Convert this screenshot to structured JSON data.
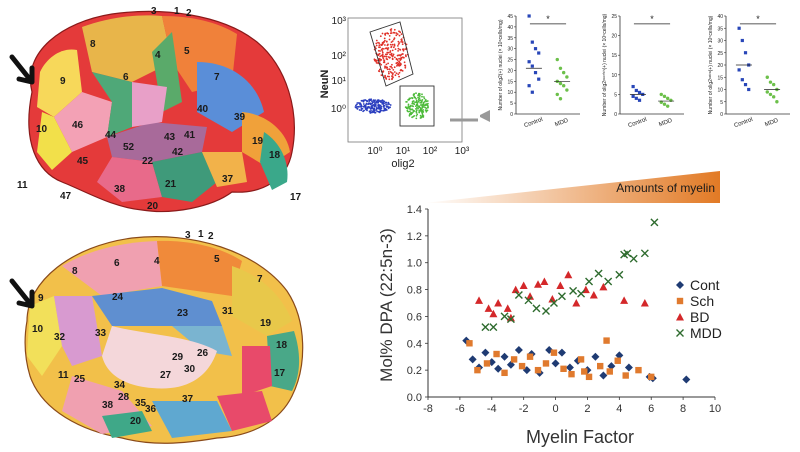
{
  "brain_lateral": {
    "area_labels": [
      "3",
      "1",
      "2",
      "4",
      "5",
      "6",
      "7",
      "8",
      "9",
      "10",
      "46",
      "44",
      "43",
      "40",
      "39",
      "41",
      "42",
      "45",
      "22",
      "52",
      "19",
      "18",
      "17",
      "21",
      "37",
      "38",
      "20",
      "11",
      "47"
    ]
  },
  "brain_medial": {
    "area_labels": [
      "3",
      "1",
      "2",
      "4",
      "5",
      "6",
      "7",
      "8",
      "9",
      "10",
      "32",
      "24",
      "23",
      "31",
      "33",
      "19",
      "18",
      "17",
      "26",
      "29",
      "30",
      "27",
      "25",
      "11",
      "34",
      "28",
      "35",
      "36",
      "37",
      "38",
      "20"
    ]
  },
  "flow_cytometry": {
    "ylabel": "NeuN",
    "xlabel": "olig2",
    "y_ticks": [
      "10³",
      "10²",
      "10¹",
      "10⁰"
    ],
    "x_ticks": [
      "10⁰",
      "10¹",
      "10²",
      "10³"
    ]
  },
  "dot_plots": [
    {
      "ylabel": "Number of olig2(+) nuclei (× 10⁶cells/mg)",
      "categories": [
        "Control",
        "MDD"
      ],
      "y_ticks": [
        "0",
        "5",
        "10",
        "15",
        "20",
        "25",
        "30",
        "35",
        "40",
        "45"
      ],
      "significance": "*",
      "points": {
        "Control": [
          45,
          33,
          30,
          28,
          24,
          22,
          19,
          16,
          13,
          10
        ],
        "MDD": [
          25,
          21,
          19,
          17,
          15,
          14,
          13,
          11,
          9,
          7
        ]
      },
      "means": [
        21,
        15
      ]
    },
    {
      "ylabel": "Number of olig2ᵖᵉᵒʳⁱᶜʰ(+) nuclei (× 10⁵cells/mg)",
      "categories": [
        "Control",
        "MDD"
      ],
      "y_ticks": [
        "0",
        "5",
        "10",
        "15",
        "20",
        "25"
      ],
      "significance": "*",
      "points": {
        "Control": [
          7,
          6,
          5.5,
          5,
          4.5,
          4,
          3.5
        ],
        "MDD": [
          5,
          4.5,
          4,
          3.5,
          3,
          2.5,
          2
        ]
      },
      "means": [
        5,
        3.3
      ]
    },
    {
      "ylabel": "Number of olig2ᵉˣᵗʳᵃ(+) nuclei (× 10⁵cells/mg)",
      "categories": [
        "Control",
        "MDD"
      ],
      "y_ticks": [
        "0",
        "5",
        "10",
        "15",
        "20",
        "25",
        "30",
        "35",
        "40"
      ],
      "significance": "*",
      "points": {
        "Control": [
          35,
          30,
          25,
          20,
          18,
          14,
          12,
          10
        ],
        "MDD": [
          15,
          13,
          12,
          10,
          9,
          8,
          7,
          5
        ]
      },
      "means": [
        20,
        10
      ]
    }
  ],
  "chart_data": {
    "type": "scatter",
    "xlabel": "Myelin Factor",
    "ylabel": "Mol% DPA (22:5n-3)",
    "xlim": [
      -8,
      10
    ],
    "ylim": [
      0,
      1.4
    ],
    "x_ticks": [
      "-8",
      "-6",
      "-4",
      "-2",
      "0",
      "2",
      "4",
      "6",
      "8",
      "10"
    ],
    "y_ticks": [
      "0.0",
      "0.2",
      "0.4",
      "0.6",
      "0.8",
      "1.0",
      "1.2",
      "1.4"
    ],
    "banner": "Amounts of myelin",
    "legend_position": "right",
    "series": [
      {
        "name": "Cont",
        "color": "#1f3b73",
        "marker": "diamond",
        "points": [
          [
            -5.6,
            0.42
          ],
          [
            -5.2,
            0.28
          ],
          [
            -4.8,
            0.22
          ],
          [
            -4.4,
            0.33
          ],
          [
            -4.0,
            0.26
          ],
          [
            -3.6,
            0.21
          ],
          [
            -3.2,
            0.3
          ],
          [
            -2.8,
            0.24
          ],
          [
            -2.3,
            0.35
          ],
          [
            -1.8,
            0.2
          ],
          [
            -1.5,
            0.32
          ],
          [
            -1.0,
            0.18
          ],
          [
            -0.4,
            0.35
          ],
          [
            0.0,
            0.25
          ],
          [
            0.4,
            0.33
          ],
          [
            0.9,
            0.22
          ],
          [
            1.4,
            0.27
          ],
          [
            2.0,
            0.2
          ],
          [
            2.5,
            0.3
          ],
          [
            3.0,
            0.16
          ],
          [
            3.5,
            0.23
          ],
          [
            4.0,
            0.31
          ],
          [
            4.6,
            0.22
          ],
          [
            5.9,
            0.15
          ],
          [
            6.1,
            0.14
          ],
          [
            8.2,
            0.13
          ]
        ]
      },
      {
        "name": "Sch",
        "color": "#e07a2e",
        "marker": "square",
        "points": [
          [
            -5.4,
            0.4
          ],
          [
            -4.9,
            0.2
          ],
          [
            -4.3,
            0.25
          ],
          [
            -3.7,
            0.32
          ],
          [
            -3.2,
            0.18
          ],
          [
            -2.6,
            0.28
          ],
          [
            -2.1,
            0.23
          ],
          [
            -1.6,
            0.3
          ],
          [
            -1.1,
            0.2
          ],
          [
            -0.6,
            0.25
          ],
          [
            -0.1,
            0.33
          ],
          [
            0.5,
            0.21
          ],
          [
            1.0,
            0.17
          ],
          [
            1.6,
            0.28
          ],
          [
            2.1,
            0.15
          ],
          [
            2.8,
            0.23
          ],
          [
            3.4,
            0.19
          ],
          [
            3.9,
            0.27
          ],
          [
            4.4,
            0.16
          ],
          [
            5.2,
            0.2
          ],
          [
            6.0,
            0.15
          ],
          [
            3.2,
            0.42
          ],
          [
            1.8,
            0.19
          ]
        ]
      },
      {
        "name": "BD",
        "color": "#d4282a",
        "marker": "triangle",
        "points": [
          [
            -4.8,
            0.72
          ],
          [
            -4.2,
            0.66
          ],
          [
            -3.6,
            0.7
          ],
          [
            -3.0,
            0.66
          ],
          [
            -2.5,
            0.8
          ],
          [
            -2.0,
            0.83
          ],
          [
            -1.6,
            0.75
          ],
          [
            -1.1,
            0.84
          ],
          [
            -0.7,
            0.86
          ],
          [
            -0.2,
            0.73
          ],
          [
            0.3,
            0.83
          ],
          [
            0.8,
            0.91
          ],
          [
            1.3,
            0.7
          ],
          [
            1.9,
            0.8
          ],
          [
            2.4,
            0.76
          ],
          [
            3.0,
            0.82
          ],
          [
            -2.8,
            0.59
          ],
          [
            -3.9,
            0.62
          ],
          [
            4.3,
            0.72
          ],
          [
            5.6,
            0.7
          ]
        ]
      },
      {
        "name": "MDD",
        "color": "#2e6b2e",
        "marker": "x",
        "points": [
          [
            -4.4,
            0.52
          ],
          [
            -3.9,
            0.52
          ],
          [
            -3.2,
            0.6
          ],
          [
            -2.8,
            0.58
          ],
          [
            -2.3,
            0.76
          ],
          [
            -1.7,
            0.72
          ],
          [
            -1.2,
            0.66
          ],
          [
            -0.6,
            0.64
          ],
          [
            -0.1,
            0.7
          ],
          [
            0.4,
            0.75
          ],
          [
            1.1,
            0.79
          ],
          [
            1.6,
            0.77
          ],
          [
            2.1,
            0.86
          ],
          [
            2.7,
            0.92
          ],
          [
            3.3,
            0.86
          ],
          [
            4.0,
            0.91
          ],
          [
            4.5,
            1.07
          ],
          [
            4.9,
            1.03
          ],
          [
            4.3,
            1.06
          ],
          [
            5.6,
            1.07
          ],
          [
            6.2,
            1.3
          ]
        ]
      }
    ]
  },
  "arrow_label": ""
}
